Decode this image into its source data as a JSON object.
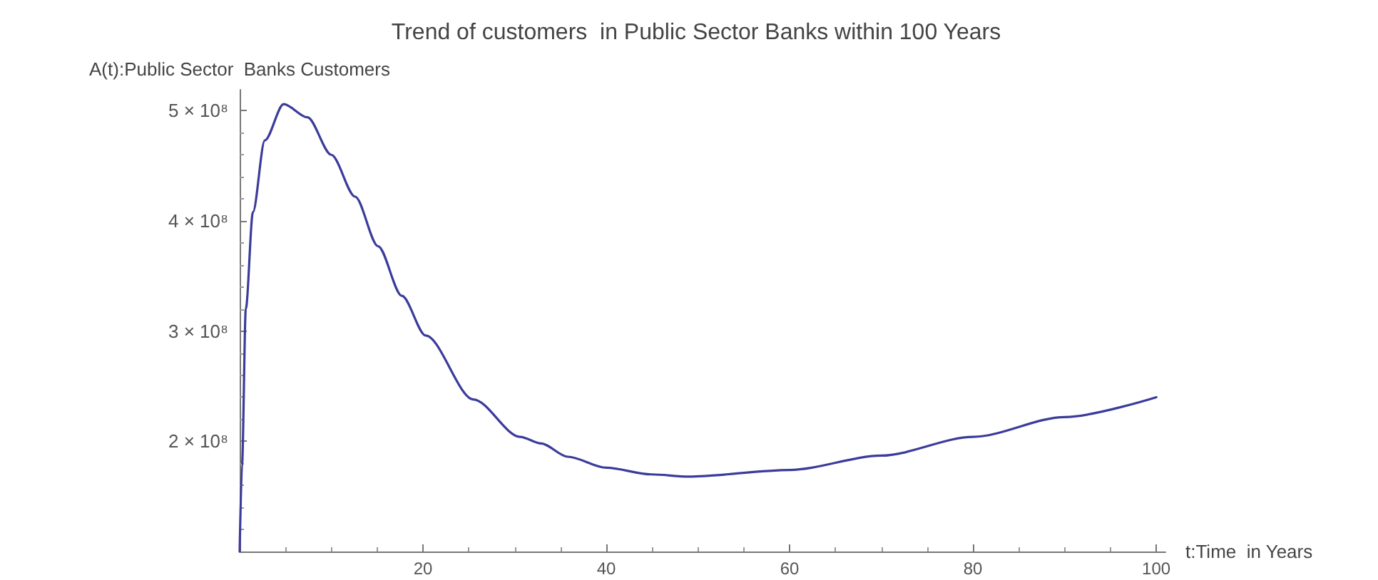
{
  "chart_data": {
    "type": "line",
    "title": "Trend of customers  in Public Sector Banks within 100 Years",
    "xlabel": "t:Time  in Years",
    "ylabel": "A(t):Public Sector  Banks Customers",
    "x": [
      0,
      0.26,
      0.67,
      1.45,
      2.74,
      4.8,
      7.4,
      10,
      12.6,
      15.1,
      17.7,
      20.3,
      25.5,
      30.6,
      32.9,
      35.8,
      40,
      44.9,
      49,
      60,
      70,
      80,
      90,
      100
    ],
    "series": [
      {
        "color": "#3b3b9b",
        "values": [
          100000000,
          179000000,
          320000000,
          408000000,
          473000000,
          506000000,
          494000000,
          460000000,
          422000000,
          377000000,
          332000000,
          296000000,
          238000000,
          204000000,
          198000000,
          186000000,
          176000000,
          170000000,
          168000000,
          174000000,
          187000000,
          204000000,
          222000000,
          240000000
        ]
      }
    ],
    "xlim": [
      0,
      101
    ],
    "xticks": [
      20,
      40,
      60,
      80,
      100
    ],
    "ylim": [
      100000000,
      519000000
    ],
    "yticks": [
      {
        "value": 200000000,
        "label": "2 × 10⁸"
      },
      {
        "value": 300000000,
        "label": "3 × 10⁸"
      },
      {
        "value": 400000000,
        "label": "4 × 10⁸"
      },
      {
        "value": 500000000,
        "label": "5 × 10⁸"
      }
    ],
    "grid": false,
    "marker": "none",
    "line_style": "solid"
  }
}
